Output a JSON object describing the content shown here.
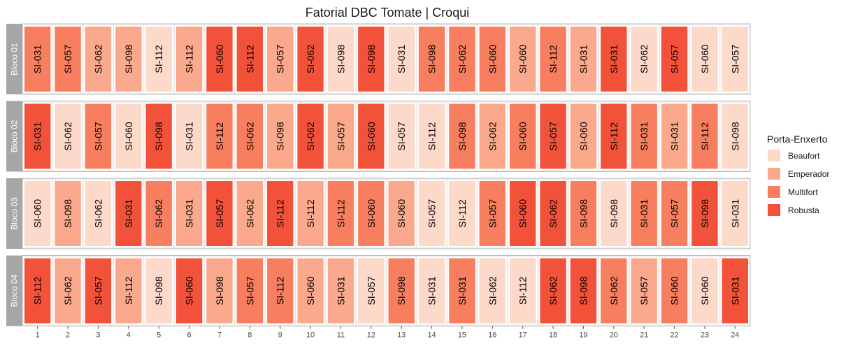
{
  "chart_data": {
    "type": "heatmap",
    "title": "Fatorial DBC Tomate | Croqui",
    "xlabel": "",
    "ylabel": "",
    "x": [
      1,
      2,
      3,
      4,
      5,
      6,
      7,
      8,
      9,
      10,
      11,
      12,
      13,
      14,
      15,
      16,
      17,
      18,
      19,
      20,
      21,
      22,
      23,
      24
    ],
    "legend": {
      "title": "Porta-Enxerto",
      "position": "right",
      "entries": [
        {
          "label": "Beaufort",
          "color": "#fdd9ca"
        },
        {
          "label": "Emperador",
          "color": "#faa98c"
        },
        {
          "label": "Multifort",
          "color": "#f77e5f"
        },
        {
          "label": "Robusta",
          "color": "#f3523a"
        }
      ]
    },
    "blocks": [
      {
        "label": "Bloco 01",
        "labels": [
          "SI-031",
          "SI-057",
          "SI-062",
          "SI-098",
          "SI-112",
          "SI-112",
          "SI-060",
          "SI-112",
          "SI-057",
          "SI-062",
          "SI-098",
          "SI-098",
          "SI-031",
          "SI-098",
          "SI-062",
          "SI-060",
          "SI-060",
          "SI-112",
          "SI-031",
          "SI-031",
          "SI-062",
          "SI-057",
          "SI-060",
          "SI-057"
        ],
        "rootstock": [
          "Multifort",
          "Multifort",
          "Emperador",
          "Emperador",
          "Beaufort",
          "Emperador",
          "Robusta",
          "Robusta",
          "Emperador",
          "Robusta",
          "Beaufort",
          "Robusta",
          "Beaufort",
          "Multifort",
          "Multifort",
          "Multifort",
          "Emperador",
          "Multifort",
          "Emperador",
          "Robusta",
          "Beaufort",
          "Robusta",
          "Beaufort",
          "Beaufort"
        ]
      },
      {
        "label": "Bloco 02",
        "labels": [
          "SI-031",
          "SI-062",
          "SI-057",
          "SI-060",
          "SI-098",
          "SI-031",
          "SI-112",
          "SI-062",
          "SI-098",
          "SI-062",
          "SI-057",
          "SI-060",
          "SI-057",
          "SI-112",
          "SI-098",
          "SI-062",
          "SI-060",
          "SI-057",
          "SI-060",
          "SI-112",
          "SI-031",
          "SI-031",
          "SI-112",
          "SI-098"
        ],
        "rootstock": [
          "Robusta",
          "Beaufort",
          "Multifort",
          "Beaufort",
          "Robusta",
          "Beaufort",
          "Multifort",
          "Multifort",
          "Emperador",
          "Robusta",
          "Emperador",
          "Robusta",
          "Beaufort",
          "Beaufort",
          "Multifort",
          "Emperador",
          "Multifort",
          "Robusta",
          "Emperador",
          "Robusta",
          "Multifort",
          "Emperador",
          "Multifort",
          "Beaufort"
        ]
      },
      {
        "label": "Bloco 03",
        "labels": [
          "SI-060",
          "SI-098",
          "SI-062",
          "SI-031",
          "SI-062",
          "SI-031",
          "SI-057",
          "SI-062",
          "SI-112",
          "SI-112",
          "SI-112",
          "SI-060",
          "SI-060",
          "SI-057",
          "SI-112",
          "SI-057",
          "SI-060",
          "SI-062",
          "SI-098",
          "SI-098",
          "SI-031",
          "SI-057",
          "SI-098",
          "SI-031"
        ],
        "rootstock": [
          "Beaufort",
          "Emperador",
          "Beaufort",
          "Robusta",
          "Multifort",
          "Emperador",
          "Robusta",
          "Emperador",
          "Robusta",
          "Emperador",
          "Multifort",
          "Multifort",
          "Emperador",
          "Beaufort",
          "Beaufort",
          "Multifort",
          "Robusta",
          "Robusta",
          "Multifort",
          "Beaufort",
          "Multifort",
          "Multifort",
          "Robusta",
          "Beaufort"
        ]
      },
      {
        "label": "Bloco 04",
        "labels": [
          "SI-112",
          "SI-062",
          "SI-057",
          "SI-112",
          "SI-098",
          "SI-060",
          "SI-098",
          "SI-057",
          "SI-112",
          "SI-060",
          "SI-031",
          "SI-057",
          "SI-098",
          "SI-031",
          "SI-031",
          "SI-062",
          "SI-112",
          "SI-062",
          "SI-098",
          "SI-062",
          "SI-057",
          "SI-060",
          "SI-060",
          "SI-031"
        ],
        "rootstock": [
          "Robusta",
          "Emperador",
          "Robusta",
          "Emperador",
          "Beaufort",
          "Robusta",
          "Emperador",
          "Multifort",
          "Multifort",
          "Emperador",
          "Emperador",
          "Beaufort",
          "Multifort",
          "Beaufort",
          "Multifort",
          "Beaufort",
          "Beaufort",
          "Robusta",
          "Robusta",
          "Multifort",
          "Emperador",
          "Multifort",
          "Beaufort",
          "Robusta"
        ]
      }
    ]
  },
  "colors": {
    "panel_background": "#ebebeb",
    "panel_border": "#bdbdbd",
    "strip_background": "#a6a6a6",
    "cell_border": "#ffffff"
  }
}
